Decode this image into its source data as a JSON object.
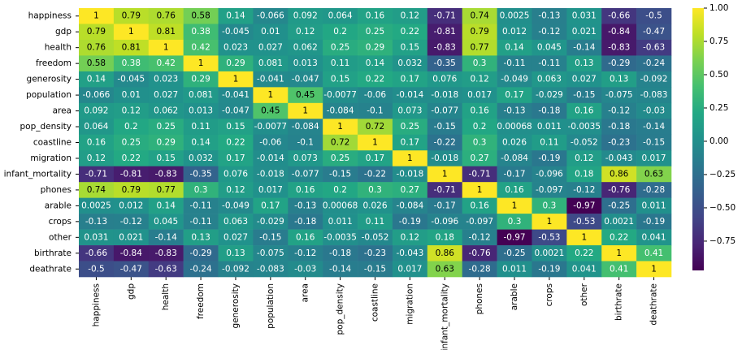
{
  "chart_data": {
    "type": "heatmap",
    "colormap": "viridis",
    "x": [
      "happiness",
      "gdp",
      "health",
      "freedom",
      "generosity",
      "population",
      "area",
      "pop_density",
      "coastline",
      "migration",
      "infant_mortality",
      "phones",
      "arable",
      "crops",
      "other",
      "birthrate",
      "deathrate"
    ],
    "y": [
      "happiness",
      "gdp",
      "health",
      "freedom",
      "generosity",
      "population",
      "area",
      "pop_density",
      "coastline",
      "migration",
      "infant_mortality",
      "phones",
      "arable",
      "crops",
      "other",
      "birthrate",
      "deathrate"
    ],
    "z": [
      [
        1,
        0.79,
        0.76,
        0.58,
        0.14,
        -0.066,
        0.092,
        0.064,
        0.16,
        0.12,
        -0.71,
        0.74,
        0.0025,
        -0.13,
        0.031,
        -0.66,
        -0.5
      ],
      [
        0.79,
        1,
        0.81,
        0.38,
        -0.045,
        0.01,
        0.12,
        0.2,
        0.25,
        0.22,
        -0.81,
        0.79,
        0.012,
        -0.12,
        0.021,
        -0.84,
        -0.47
      ],
      [
        0.76,
        0.81,
        1,
        0.42,
        0.023,
        0.027,
        0.062,
        0.25,
        0.29,
        0.15,
        -0.83,
        0.77,
        0.14,
        0.045,
        -0.14,
        -0.83,
        -0.63
      ],
      [
        0.58,
        0.38,
        0.42,
        1,
        0.29,
        0.081,
        0.013,
        0.11,
        0.14,
        0.032,
        -0.35,
        0.3,
        -0.11,
        -0.11,
        0.13,
        -0.29,
        -0.24
      ],
      [
        0.14,
        -0.045,
        0.023,
        0.29,
        1,
        -0.041,
        -0.047,
        0.15,
        0.22,
        0.17,
        0.076,
        0.12,
        -0.049,
        0.063,
        0.027,
        0.13,
        -0.092
      ],
      [
        -0.066,
        0.01,
        0.027,
        0.081,
        -0.041,
        1,
        0.45,
        -0.0077,
        -0.06,
        -0.014,
        -0.018,
        0.017,
        0.17,
        -0.029,
        -0.15,
        -0.075,
        -0.083
      ],
      [
        0.092,
        0.12,
        0.062,
        0.013,
        -0.047,
        0.45,
        1,
        -0.084,
        -0.1,
        0.073,
        -0.077,
        0.16,
        -0.13,
        -0.18,
        0.16,
        -0.12,
        -0.03
      ],
      [
        0.064,
        0.2,
        0.25,
        0.11,
        0.15,
        -0.0077,
        -0.084,
        1,
        0.72,
        0.25,
        -0.15,
        0.2,
        0.00068,
        0.011,
        -0.0035,
        -0.18,
        -0.14
      ],
      [
        0.16,
        0.25,
        0.29,
        0.14,
        0.22,
        -0.06,
        -0.1,
        0.72,
        1,
        0.17,
        -0.22,
        0.3,
        0.026,
        0.11,
        -0.052,
        -0.23,
        -0.15
      ],
      [
        0.12,
        0.22,
        0.15,
        0.032,
        0.17,
        -0.014,
        0.073,
        0.25,
        0.17,
        1,
        -0.018,
        0.27,
        -0.084,
        -0.19,
        0.12,
        -0.043,
        0.017
      ],
      [
        -0.71,
        -0.81,
        -0.83,
        -0.35,
        0.076,
        -0.018,
        -0.077,
        -0.15,
        -0.22,
        -0.018,
        1,
        -0.71,
        -0.17,
        -0.096,
        0.18,
        0.86,
        0.63
      ],
      [
        0.74,
        0.79,
        0.77,
        0.3,
        0.12,
        0.017,
        0.16,
        0.2,
        0.3,
        0.27,
        -0.71,
        1,
        0.16,
        -0.097,
        -0.12,
        -0.76,
        -0.28
      ],
      [
        0.0025,
        0.012,
        0.14,
        -0.11,
        -0.049,
        0.17,
        -0.13,
        0.00068,
        0.026,
        -0.084,
        -0.17,
        0.16,
        1,
        0.3,
        -0.97,
        -0.25,
        0.011
      ],
      [
        -0.13,
        -0.12,
        0.045,
        -0.11,
        0.063,
        -0.029,
        -0.18,
        0.011,
        0.11,
        -0.19,
        -0.096,
        -0.097,
        0.3,
        1,
        -0.53,
        0.0021,
        -0.19
      ],
      [
        0.031,
        0.021,
        -0.14,
        0.13,
        0.027,
        -0.15,
        0.16,
        -0.0035,
        -0.052,
        0.12,
        0.18,
        -0.12,
        -0.97,
        -0.53,
        1,
        0.22,
        0.041
      ],
      [
        -0.66,
        -0.84,
        -0.83,
        -0.29,
        0.13,
        -0.075,
        -0.12,
        -0.18,
        -0.23,
        -0.043,
        0.86,
        -0.76,
        -0.25,
        0.0021,
        0.22,
        1,
        0.41
      ],
      [
        -0.5,
        -0.47,
        -0.63,
        -0.24,
        -0.092,
        -0.083,
        -0.03,
        -0.14,
        -0.15,
        0.017,
        0.63,
        -0.28,
        0.011,
        -0.19,
        0.041,
        0.41,
        1
      ]
    ],
    "clim": [
      -0.97,
      1
    ],
    "cticks": [
      {
        "value": 1,
        "label": "1.00"
      },
      {
        "value": 0.75,
        "label": "0.75"
      },
      {
        "value": 0.5,
        "label": "0.50"
      },
      {
        "value": 0.25,
        "label": "0.25"
      },
      {
        "value": 0,
        "label": "0.00"
      },
      {
        "value": -0.25,
        "label": "−0.25"
      },
      {
        "value": -0.5,
        "label": "−0.50"
      },
      {
        "value": -0.75,
        "label": "−0.75"
      }
    ]
  }
}
